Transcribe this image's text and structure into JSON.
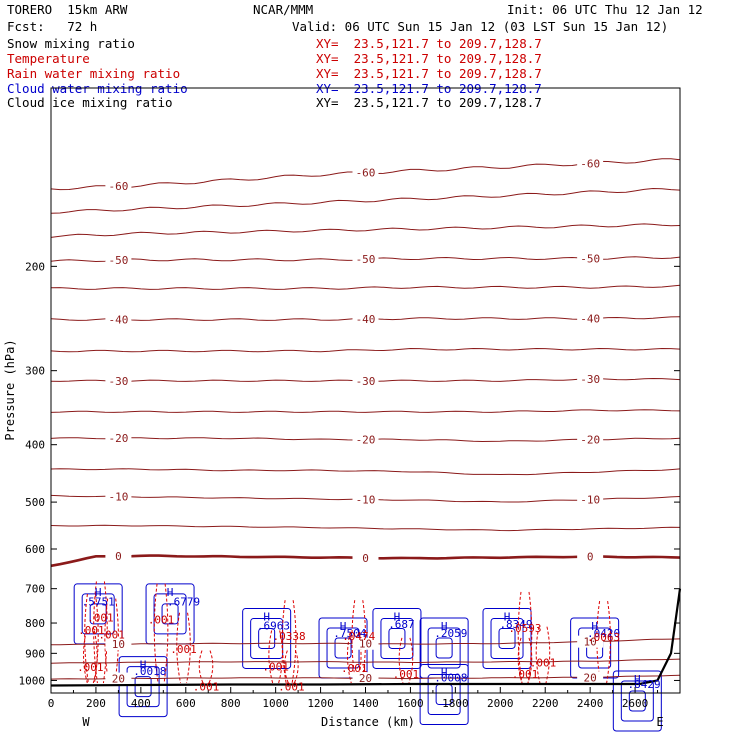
{
  "header": {
    "model": "TORERO  15km ARW",
    "center": "NCAR/MMM",
    "init": "Init: 06 UTC Thu 12 Jan 12",
    "fcst": "Fcst:   72 h",
    "valid": "Valid: 06 UTC Sun 15 Jan 12 (03 LST Sun 15 Jan 12)"
  },
  "fields": [
    {
      "name": "Snow mixing ratio",
      "xy": "",
      "color": "#000000"
    },
    {
      "name": "Temperature",
      "xy": "XY=  23.5,121.7 to 209.7,128.7",
      "color": "#cc0000"
    },
    {
      "name": "Rain water mixing ratio",
      "xy": "XY=  23.5,121.7 to 209.7,128.7",
      "color": "#cc0000"
    },
    {
      "name": "Cloud water mixing ratio",
      "xy": "XY=  23.5,121.7 to 209.7,128.7",
      "color": "#0000cc"
    },
    {
      "name": "Cloud ice mixing ratio",
      "xy": "XY=  23.5,121.7 to 209.7,128.7",
      "color": "#000000"
    }
  ],
  "xy_first": "XY=  23.5,121.7 to 209.7,128.7",
  "chart_data": {
    "type": "cross-section contour",
    "xlabel": "Distance (km)",
    "ylabel": "Pressure (hPa)",
    "xlim": [
      0,
      2800
    ],
    "ylim": [
      1050,
      100
    ],
    "yscale": "log-pressure",
    "x_ticks": [
      0,
      200,
      400,
      600,
      800,
      1000,
      1200,
      1400,
      1600,
      1800,
      2000,
      2200,
      2400,
      2600
    ],
    "y_ticks": [
      200,
      300,
      400,
      500,
      600,
      700,
      800,
      900,
      1000
    ],
    "x_end_labels": {
      "left": "W",
      "right": "E"
    },
    "temperature_color": "#8b1a1a",
    "surface_color": "#000000",
    "isotherms": [
      {
        "label": "-60",
        "x": [
          0,
          400,
          800,
          1200,
          1600,
          2000,
          2400,
          2800
        ],
        "p": [
          148,
          146,
          143,
          140,
          138,
          136,
          134,
          132
        ]
      },
      {
        "label": "",
        "x": [
          0,
          400,
          800,
          1200,
          1600,
          2000,
          2400,
          2800
        ],
        "p": [
          162,
          160,
          158,
          156,
          154,
          152,
          150,
          148
        ]
      },
      {
        "label": "",
        "x": [
          0,
          400,
          800,
          1200,
          1600,
          2000,
          2400,
          2800
        ],
        "p": [
          178,
          176,
          175,
          174,
          173,
          172,
          171,
          170
        ]
      },
      {
        "label": "-50",
        "x": [
          0,
          400,
          800,
          1200,
          1600,
          2000,
          2400,
          2800
        ],
        "p": [
          196,
          195,
          195,
          195,
          194,
          194,
          194,
          193
        ]
      },
      {
        "label": "",
        "x": [
          0,
          400,
          800,
          1200,
          1600,
          2000,
          2400,
          2800
        ],
        "p": [
          218,
          218,
          218,
          218,
          217,
          217,
          217,
          216
        ]
      },
      {
        "label": "-40",
        "x": [
          0,
          400,
          800,
          1200,
          1600,
          2000,
          2400,
          2800
        ],
        "p": [
          246,
          246,
          246,
          246,
          245,
          245,
          245,
          244
        ]
      },
      {
        "label": "",
        "x": [
          0,
          400,
          800,
          1200,
          1600,
          2000,
          2400,
          2800
        ],
        "p": [
          278,
          278,
          278,
          278,
          276,
          276,
          276,
          276
        ]
      },
      {
        "label": "-30",
        "x": [
          0,
          400,
          800,
          1200,
          1600,
          2000,
          2400,
          2800
        ],
        "p": [
          312,
          312,
          312,
          312,
          312,
          312,
          310,
          310
        ]
      },
      {
        "label": "",
        "x": [
          0,
          400,
          800,
          1200,
          1600,
          2000,
          2400,
          2800
        ],
        "p": [
          352,
          352,
          352,
          352,
          352,
          352,
          350,
          350
        ]
      },
      {
        "label": "-20",
        "x": [
          0,
          400,
          800,
          1200,
          1600,
          2000,
          2400,
          2800
        ],
        "p": [
          390,
          390,
          390,
          392,
          392,
          395,
          392,
          390
        ]
      },
      {
        "label": "",
        "x": [
          0,
          400,
          800,
          1200,
          1600,
          2000,
          2400,
          2800
        ],
        "p": [
          440,
          440,
          442,
          442,
          444,
          450,
          445,
          440
        ]
      },
      {
        "label": "-10",
        "x": [
          0,
          400,
          800,
          1200,
          1600,
          2000,
          2400,
          2800
        ],
        "p": [
          488,
          490,
          492,
          494,
          496,
          500,
          495,
          490
        ]
      },
      {
        "label": "",
        "x": [
          0,
          400,
          800,
          1200,
          1600,
          2000,
          2400,
          2800
        ],
        "p": [
          548,
          548,
          550,
          552,
          555,
          558,
          555,
          552
        ]
      },
      {
        "label": "0",
        "x": [
          0,
          200,
          400,
          800,
          1200,
          1600,
          2000,
          2400,
          2800
        ],
        "p": [
          640,
          618,
          616,
          618,
          620,
          622,
          620,
          618,
          620
        ]
      },
      {
        "label": "10",
        "x": [
          0,
          400,
          800,
          1200,
          1600,
          2000,
          2400,
          2800
        ],
        "p": [
          870,
          868,
          866,
          866,
          868,
          866,
          860,
          850
        ]
      },
      {
        "label": "",
        "x": [
          0,
          400,
          800,
          1200,
          1600,
          2000,
          2400,
          2800
        ],
        "p": [
          935,
          932,
          930,
          930,
          932,
          930,
          928,
          920
        ]
      },
      {
        "label": "20",
        "x": [
          0,
          400,
          800,
          1200,
          1600,
          2000,
          2400,
          2800
        ],
        "p": [
          995,
          992,
          990,
          990,
          992,
          990,
          988,
          980
        ]
      }
    ],
    "surface": {
      "x": [
        0,
        400,
        800,
        1200,
        1600,
        2000,
        2400,
        2620,
        2700,
        2760,
        2800
      ],
      "p": [
        1020,
        1018,
        1016,
        1016,
        1014,
        1014,
        1014,
        1014,
        1000,
        900,
        700
      ]
    },
    "cloud_water_labels": [
      {
        "text": "H",
        "x": 210,
        "p": 720
      },
      {
        "text": ".5751",
        "x": 210,
        "p": 748
      },
      {
        "text": "H",
        "x": 530,
        "p": 720
      },
      {
        "text": ".6779",
        "x": 590,
        "p": 748
      },
      {
        "text": "H",
        "x": 960,
        "p": 792
      },
      {
        "text": ".6963",
        "x": 990,
        "p": 820
      },
      {
        "text": "H",
        "x": 1300,
        "p": 822
      },
      {
        "text": ".7504",
        "x": 1330,
        "p": 845
      },
      {
        "text": "H",
        "x": 1540,
        "p": 792
      },
      {
        "text": ".687",
        "x": 1560,
        "p": 815
      },
      {
        "text": "H",
        "x": 1750,
        "p": 822
      },
      {
        "text": ".2059",
        "x": 1780,
        "p": 845
      },
      {
        "text": "H",
        "x": 2030,
        "p": 792
      },
      {
        "text": ".8349",
        "x": 2070,
        "p": 815
      },
      {
        "text": "H",
        "x": 2420,
        "p": 822
      },
      {
        "text": ".0420",
        "x": 2460,
        "p": 845
      },
      {
        "text": "H",
        "x": 410,
        "p": 955
      },
      {
        "text": ".0018",
        "x": 440,
        "p": 980
      },
      {
        "text": "H",
        "x": 1750,
        "p": 985
      },
      {
        "text": ".0008",
        "x": 1780,
        "p": 1005
      },
      {
        "text": "H",
        "x": 2610,
        "p": 1010
      },
      {
        "text": ".8429",
        "x": 2640,
        "p": 1030
      }
    ],
    "rain_water_labels": [
      {
        "text": ".001",
        "x": 220,
        "p": 795
      },
      {
        "text": ".001",
        "x": 180,
        "p": 835
      },
      {
        "text": ".001",
        "x": 270,
        "p": 850
      },
      {
        "text": ".001",
        "x": 490,
        "p": 802
      },
      {
        "text": ".001",
        "x": 590,
        "p": 898
      },
      {
        "text": ".001",
        "x": 175,
        "p": 964
      },
      {
        "text": ".0338",
        "x": 1060,
        "p": 855
      },
      {
        "text": ".0474",
        "x": 1370,
        "p": 855
      },
      {
        "text": ".0593",
        "x": 2110,
        "p": 828
      },
      {
        "text": ".0063",
        "x": 2460,
        "p": 858
      },
      {
        "text": ".001",
        "x": 1000,
        "p": 962
      },
      {
        "text": ".001",
        "x": 1350,
        "p": 968
      },
      {
        "text": ".001",
        "x": 1580,
        "p": 990
      },
      {
        "text": ".001",
        "x": 2190,
        "p": 948
      },
      {
        "text": ".001",
        "x": 2110,
        "p": 990
      },
      {
        "text": ".001",
        "x": 690,
        "p": 1040
      },
      {
        "text": ".001",
        "x": 1070,
        "p": 1040
      }
    ]
  }
}
